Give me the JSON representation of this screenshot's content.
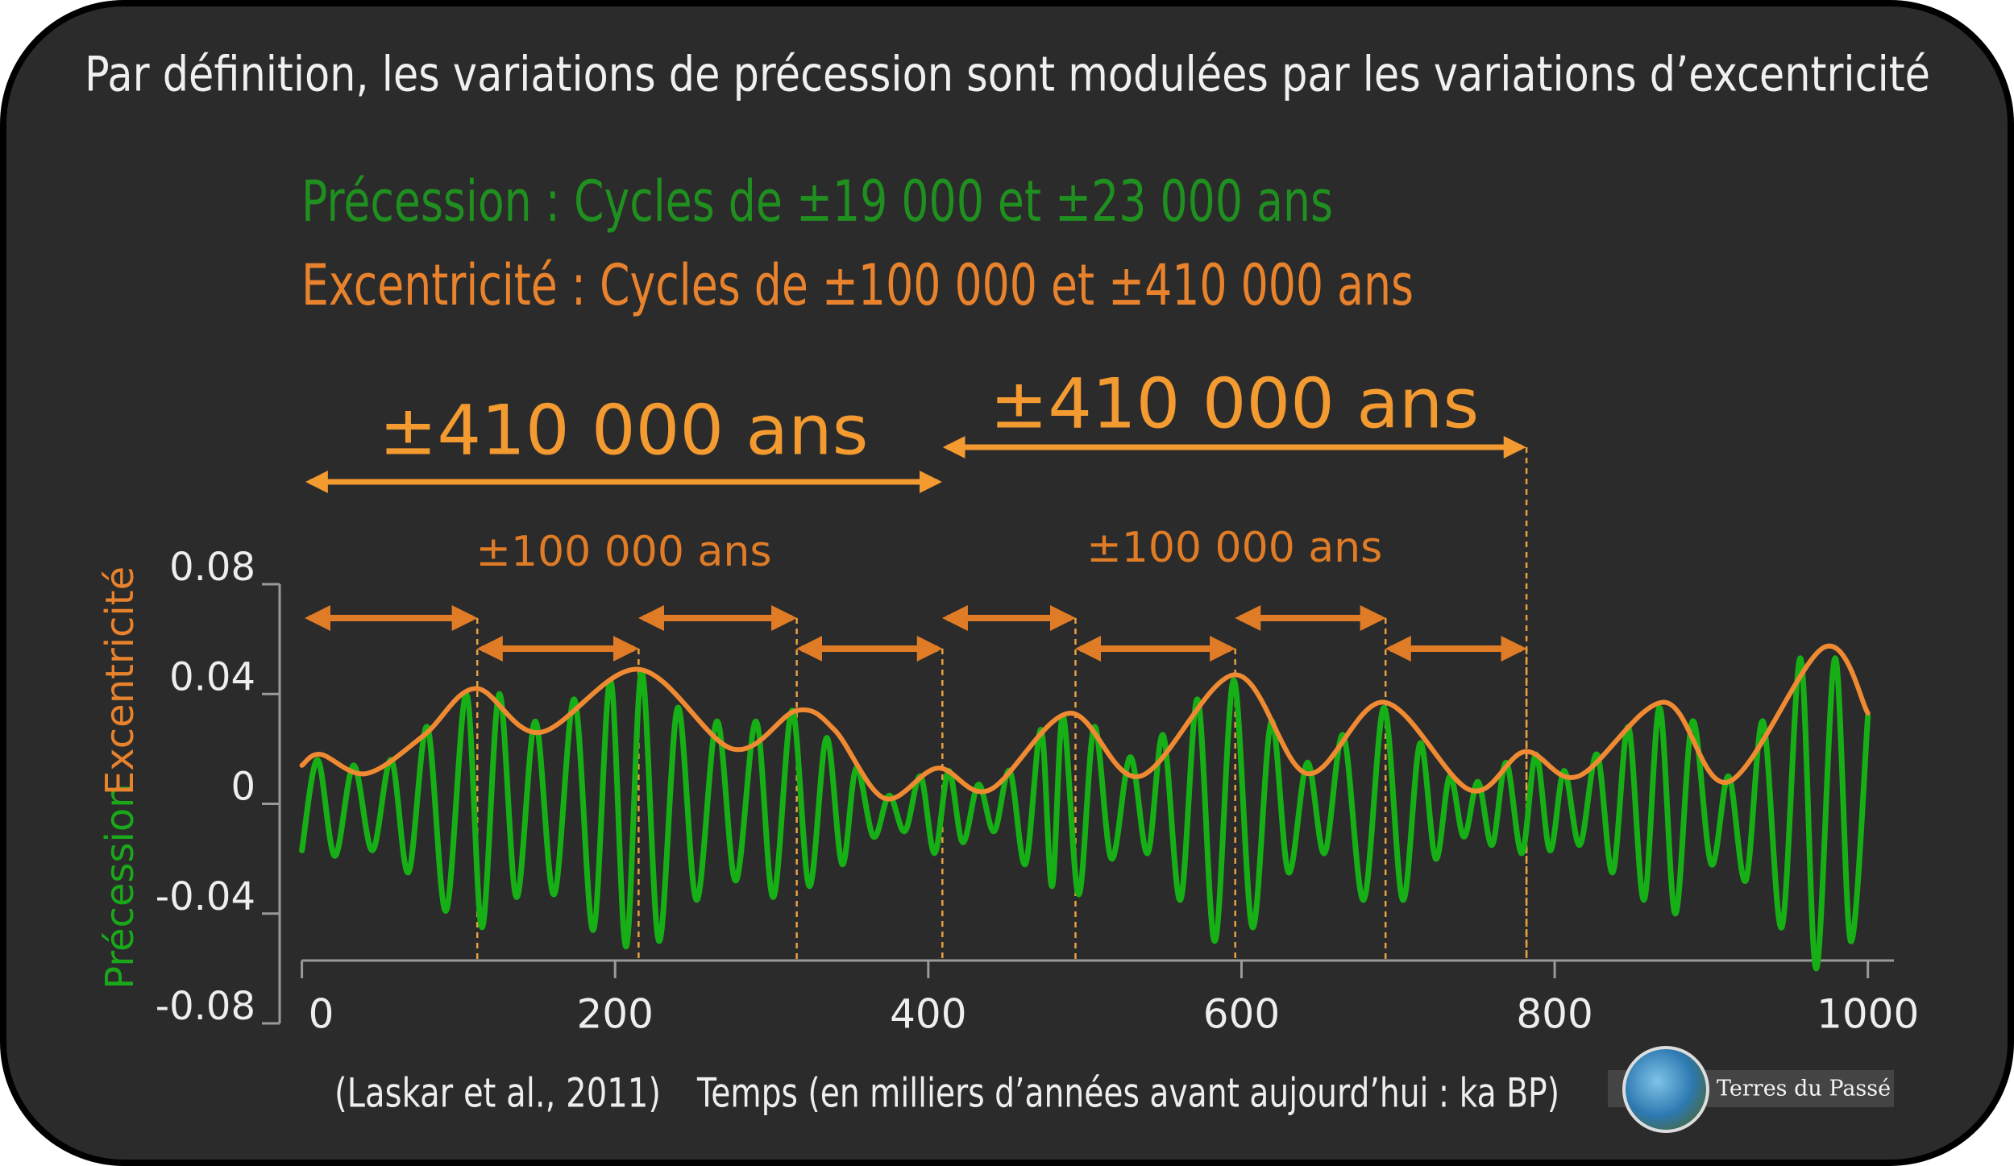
{
  "chart_data": {
    "type": "line",
    "title": "Par définition, les variations de précession sont modulées par les variations d’excentricité",
    "subtitles": [
      {
        "text": "Précession : Cycles de ±19 000 et ±23 000 ans",
        "color": "#1f8f1f"
      },
      {
        "text": "Excentricité : Cycles de ±100 000 et ±410 000 ans",
        "color": "#e8822c"
      }
    ],
    "ylabel_parts": [
      {
        "text": "Précession",
        "color": "#1aa81a"
      },
      {
        "text": "Excentricité",
        "color": "#e8822c"
      }
    ],
    "xlabel": "Temps (en milliers d’années avant aujourd’hui : ka BP)",
    "source": "(Laskar et al., 2011)",
    "logo": "Terres du Passé",
    "xlim": [
      0,
      1000
    ],
    "xticks": [
      0,
      200,
      400,
      600,
      800,
      1000
    ],
    "ylim": [
      -0.08,
      0.08
    ],
    "yticks": [
      0.08,
      0.04,
      0,
      -0.04,
      -0.08
    ],
    "series": [
      {
        "name": "Précession",
        "color": "#16b016",
        "x": [
          0,
          10,
          21,
          33,
          45,
          57,
          68,
          80,
          92,
          105,
          115,
          126,
          137,
          149,
          161,
          174,
          186,
          197,
          207,
          217,
          228,
          240,
          252,
          265,
          277,
          290,
          301,
          313,
          324,
          335,
          345,
          354,
          365,
          375,
          385,
          395,
          404,
          413,
          422,
          432,
          442,
          452,
          462,
          472,
          479,
          486,
          496,
          506,
          517,
          529,
          540,
          550,
          561,
          572,
          583,
          595,
          607,
          619,
          630,
          642,
          653,
          665,
          678,
          691,
          703,
          714,
          724,
          733,
          742,
          751,
          760,
          769,
          779,
          788,
          797,
          806,
          816,
          827,
          837,
          847,
          857,
          867,
          877,
          888,
          900,
          911,
          922,
          933,
          945,
          957,
          967,
          979,
          989,
          1000
        ],
        "values": [
          -0.017,
          0.016,
          -0.019,
          0.014,
          -0.017,
          0.016,
          -0.025,
          0.028,
          -0.039,
          0.04,
          -0.045,
          0.04,
          -0.034,
          0.03,
          -0.033,
          0.038,
          -0.046,
          0.045,
          -0.052,
          0.048,
          -0.05,
          0.035,
          -0.035,
          0.03,
          -0.028,
          0.03,
          -0.034,
          0.034,
          -0.03,
          0.024,
          -0.022,
          0.013,
          -0.012,
          0.003,
          -0.01,
          0.01,
          -0.018,
          0.012,
          -0.014,
          0.007,
          -0.01,
          0.012,
          -0.022,
          0.027,
          -0.03,
          0.032,
          -0.033,
          0.028,
          -0.02,
          0.017,
          -0.018,
          0.025,
          -0.035,
          0.038,
          -0.05,
          0.045,
          -0.045,
          0.03,
          -0.025,
          0.015,
          -0.018,
          0.025,
          -0.035,
          0.035,
          -0.035,
          0.022,
          -0.02,
          0.01,
          -0.012,
          0.008,
          -0.015,
          0.015,
          -0.018,
          0.018,
          -0.017,
          0.012,
          -0.015,
          0.018,
          -0.025,
          0.028,
          -0.035,
          0.035,
          -0.04,
          0.03,
          -0.022,
          0.01,
          -0.028,
          0.03,
          -0.045,
          0.053,
          -0.06,
          0.053,
          -0.05,
          0.032
        ]
      },
      {
        "name": "Excentricité",
        "color": "#f08a32",
        "x": [
          0,
          12,
          41,
          78,
          111,
          152,
          215,
          275,
          316,
          340,
          372,
          406,
          439,
          490,
          535,
          596,
          642,
          691,
          746,
          781,
          815,
          870,
          911,
          972,
          1000
        ],
        "values": [
          0.014,
          0.018,
          0.011,
          0.025,
          0.042,
          0.026,
          0.049,
          0.02,
          0.034,
          0.027,
          0.002,
          0.013,
          0.005,
          0.033,
          0.01,
          0.047,
          0.011,
          0.037,
          0.005,
          0.019,
          0.01,
          0.037,
          0.008,
          0.057,
          0.033
        ]
      }
    ],
    "annotations": [
      {
        "text": "±410 000 ans",
        "spans": [
          [
            2,
            409
          ]
        ]
      },
      {
        "text": "±410 000 ans",
        "spans": [
          [
            409,
            782
          ]
        ]
      },
      {
        "text": "±100 000 ans",
        "spans": [
          [
            2,
            112
          ],
          [
            112,
            215
          ],
          [
            215,
            316
          ],
          [
            316,
            409
          ]
        ]
      },
      {
        "text": "±100 000 ans",
        "spans": [
          [
            409,
            494
          ],
          [
            494,
            596
          ],
          [
            596,
            692
          ],
          [
            692,
            782
          ]
        ]
      }
    ]
  }
}
